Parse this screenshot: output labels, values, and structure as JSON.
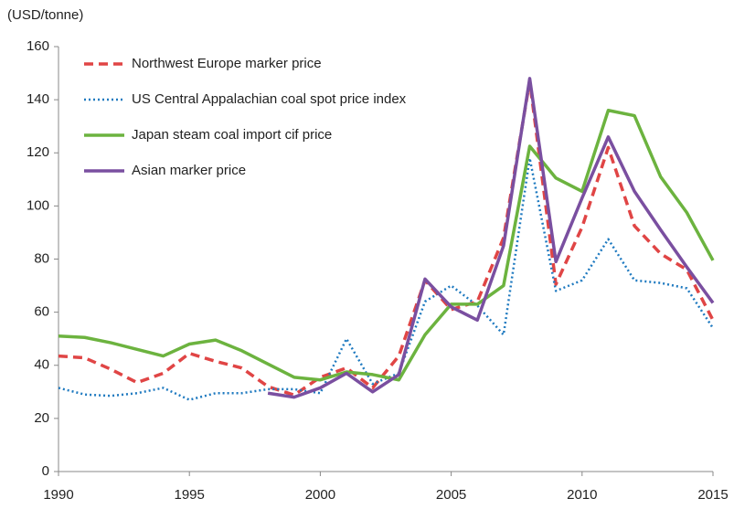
{
  "chart_data": {
    "type": "line",
    "y_axis_label": "(USD/tonne)",
    "x": [
      1990,
      1991,
      1992,
      1993,
      1994,
      1995,
      1996,
      1997,
      1998,
      1999,
      2000,
      2001,
      2002,
      2003,
      2004,
      2005,
      2006,
      2007,
      2008,
      2009,
      2010,
      2011,
      2012,
      2013,
      2014,
      2015
    ],
    "series": [
      {
        "name": "Northwest Europe marker price",
        "color": "#e04545",
        "style": "dashed",
        "values": [
          43.5,
          42.8,
          38.5,
          33.5,
          37,
          44.5,
          41.5,
          39,
          32,
          28.8,
          35.5,
          39,
          31.5,
          43.5,
          72,
          61,
          64,
          88,
          147,
          70.5,
          92,
          122,
          92.5,
          82,
          76,
          57
        ]
      },
      {
        "name": "US Central Appalachian coal spot price index",
        "color": "#1f7ac0",
        "style": "dotted",
        "values": [
          31.5,
          29,
          28.5,
          29.5,
          31.5,
          27,
          29.5,
          29.5,
          31,
          31,
          29.5,
          50,
          33,
          37,
          64,
          70,
          62.5,
          51.5,
          118,
          68,
          72,
          87.5,
          72,
          71,
          69,
          54
        ]
      },
      {
        "name": "Japan steam coal import cif price",
        "color": "#6cb33f",
        "style": "solid",
        "values": [
          51,
          50.5,
          48.5,
          46,
          43.5,
          48,
          49.5,
          45.5,
          40.5,
          35.5,
          34.5,
          37.5,
          36.5,
          34.5,
          51.5,
          63,
          63,
          70,
          122.5,
          110.5,
          105.5,
          136,
          134,
          111,
          97.5,
          79.5
        ]
      },
      {
        "name": "Asian marker price",
        "color": "#7a4fa0",
        "style": "solid",
        "values": [
          null,
          null,
          null,
          null,
          null,
          null,
          null,
          null,
          29.5,
          28,
          31.5,
          37,
          30,
          36.5,
          72.5,
          62,
          57,
          85,
          148,
          79,
          103,
          126,
          105.5,
          91,
          77,
          63.5
        ]
      }
    ],
    "xlim": [
      1990,
      2015
    ],
    "xticks": [
      1990,
      1995,
      2000,
      2005,
      2010,
      2015
    ],
    "ylim": [
      0,
      160
    ],
    "yticks": [
      0,
      20,
      40,
      60,
      80,
      100,
      120,
      140,
      160
    ],
    "grid": false,
    "legend": "upper-left"
  }
}
